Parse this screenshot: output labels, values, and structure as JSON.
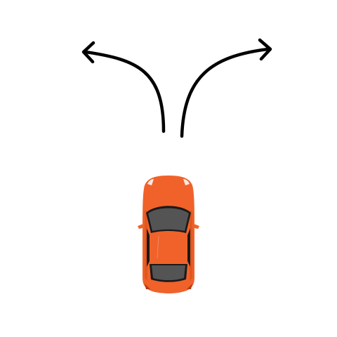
{
  "scene": {
    "background_color": "#ffffff",
    "arrows": [
      {
        "name": "left-turn-arrow",
        "direction": "left",
        "icon": "curved-arrow-left-icon"
      },
      {
        "name": "right-turn-arrow",
        "direction": "right",
        "icon": "curved-arrow-right-icon"
      }
    ],
    "arrow_color": "#000000",
    "car": {
      "icon": "car-top-view-icon",
      "body_color": "#f0622a",
      "body_shade_color": "#d9531d",
      "glass_color": "#545454",
      "trim_color": "#1a1a1a"
    }
  }
}
